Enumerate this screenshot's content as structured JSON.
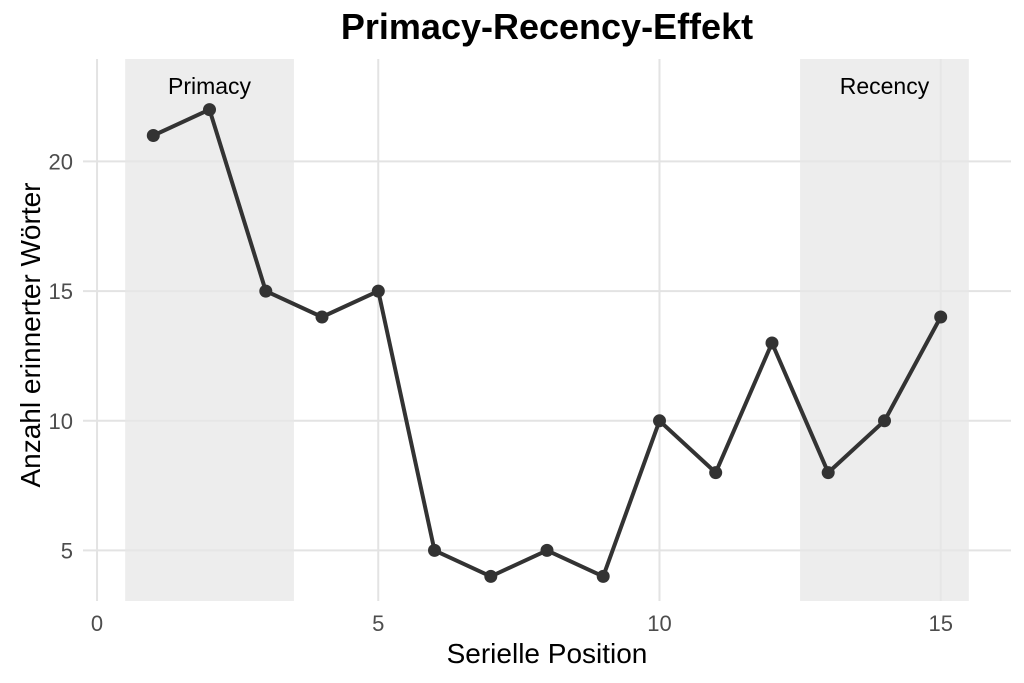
{
  "chart_data": {
    "type": "line",
    "title": "Primacy-Recency-Effekt",
    "xlabel": "Serielle Position",
    "ylabel": "Anzahl erinnerter Wörter",
    "x": [
      1,
      2,
      3,
      4,
      5,
      6,
      7,
      8,
      9,
      10,
      11,
      12,
      13,
      14,
      15
    ],
    "values": [
      21,
      22,
      15,
      14,
      15,
      5,
      4,
      5,
      4,
      10,
      8,
      13,
      8,
      10,
      14
    ],
    "xticks": [
      0,
      5,
      10,
      15
    ],
    "yticks": [
      5,
      10,
      15,
      20
    ],
    "xlim": [
      -0.25,
      16.25
    ],
    "ylim": [
      3.05,
      23.95
    ],
    "grid": true,
    "legend": false,
    "regions": [
      {
        "label": "Primacy",
        "x0": 0.5,
        "x1": 3.5,
        "label_x": 2,
        "label_y": 22.9
      },
      {
        "label": "Recency",
        "x0": 12.5,
        "x1": 15.5,
        "label_x": 14,
        "label_y": 22.9
      }
    ]
  },
  "colors": {
    "background": "#ffffff",
    "line": "#333333",
    "point": "#333333",
    "grid": "#e3e3e3",
    "region_fill": "rgba(231,231,231,0.75)",
    "tick_label": "#4d4d4d",
    "text": "#000000"
  }
}
